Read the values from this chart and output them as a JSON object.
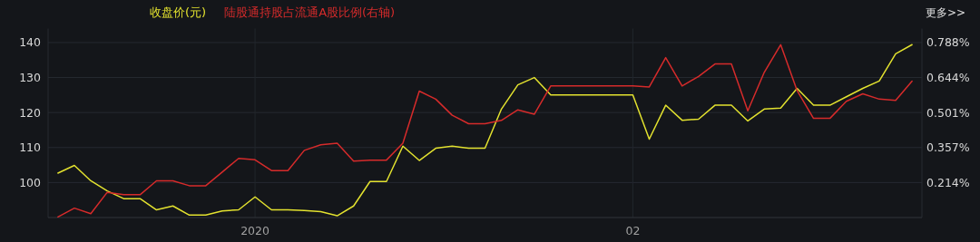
{
  "chart_data": {
    "type": "line",
    "categories": [
      null,
      null,
      null,
      null,
      null,
      null,
      null,
      null,
      null,
      null,
      null,
      null,
      "2020",
      null,
      null,
      null,
      null,
      null,
      null,
      null,
      null,
      null,
      null,
      null,
      null,
      null,
      null,
      null,
      null,
      null,
      null,
      null,
      null,
      null,
      null,
      "02",
      null,
      null,
      null,
      null,
      null,
      null,
      null,
      null,
      null,
      null,
      null,
      null,
      null,
      null,
      null,
      null,
      null
    ],
    "ylim": [
      90,
      144
    ],
    "yticks": [
      100,
      110,
      120,
      130,
      140
    ],
    "y2lim": [
      0.0705,
      0.8454
    ],
    "y2ticks": [
      {
        "value": 0.214,
        "label": "0.214%"
      },
      {
        "value": 0.357,
        "label": "0.357%"
      },
      {
        "value": 0.501,
        "label": "0.501%"
      },
      {
        "value": 0.644,
        "label": "0.644%"
      },
      {
        "value": 0.788,
        "label": "0.788%"
      }
    ],
    "grid": true,
    "legend": "top left",
    "line_style": "solid",
    "annotations": [
      "更多>>"
    ],
    "series": [
      {
        "name": "收盘价(元)",
        "color": "#e3e22f",
        "values": [
          102.7,
          104.9,
          100.5,
          97.6,
          95.4,
          95.4,
          92.2,
          93.3,
          90.7,
          90.7,
          91.9,
          92.2,
          95.9,
          92.2,
          92.2,
          92.0,
          91.7,
          90.5,
          93.3,
          100.3,
          100.3,
          110.4,
          106.3,
          109.8,
          110.4,
          109.8,
          109.8,
          121.0,
          127.9,
          130.0,
          125.0,
          125.0,
          125.0,
          125.0,
          125.0,
          125.0,
          112.4,
          122.1,
          117.8,
          118.1,
          122.1,
          122.1,
          117.6,
          121.0,
          121.3,
          126.9,
          122.1,
          122.1,
          124.5,
          126.9,
          129.0,
          136.8,
          139.4
        ]
      },
      {
        "name": "陆股通持股占流通A股比例(右轴)",
        "color": "#d62b2b",
        "axis": "y2",
        "values": [
          0.073,
          0.109,
          0.086,
          0.174,
          0.164,
          0.164,
          0.221,
          0.221,
          0.201,
          0.201,
          0.257,
          0.313,
          0.307,
          0.263,
          0.263,
          0.346,
          0.369,
          0.375,
          0.302,
          0.306,
          0.306,
          0.375,
          0.589,
          0.556,
          0.49,
          0.455,
          0.455,
          0.469,
          0.512,
          0.494,
          0.61,
          0.61,
          0.61,
          0.61,
          0.61,
          0.61,
          0.606,
          0.726,
          0.61,
          0.649,
          0.7,
          0.7,
          0.508,
          0.666,
          0.779,
          0.591,
          0.477,
          0.477,
          0.547,
          0.578,
          0.556,
          0.551,
          0.63
        ]
      }
    ]
  }
}
